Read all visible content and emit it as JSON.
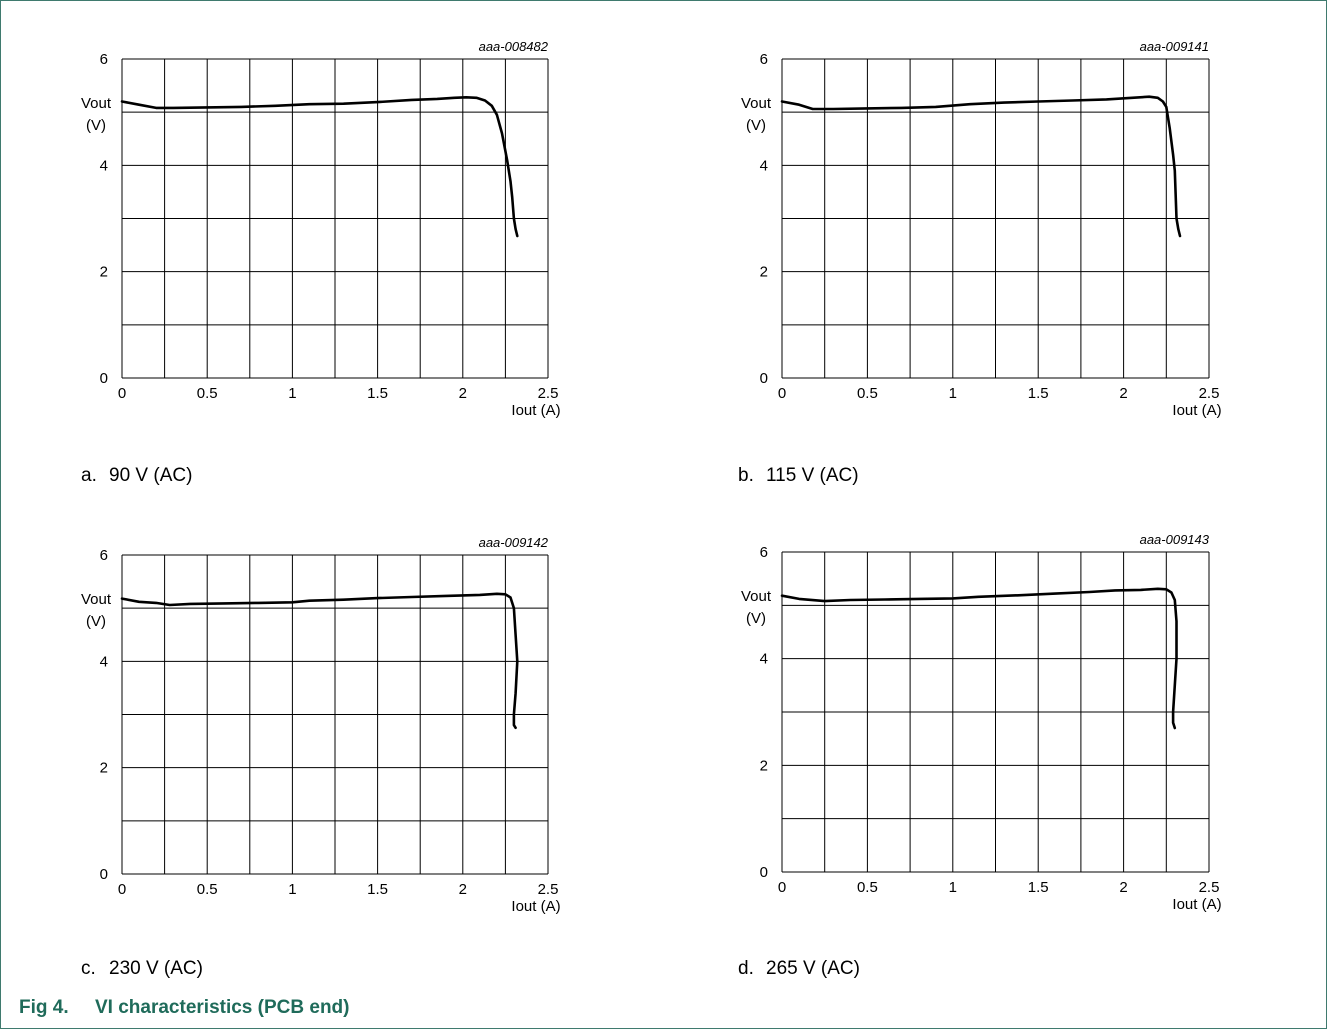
{
  "figure": {
    "number": "Fig 4.",
    "title": "VI characteristics (PCB end)"
  },
  "colors": {
    "frame": "#3f7a6e",
    "title": "#1f6b5a",
    "curve": "#000000",
    "grid": "#000000"
  },
  "panels": [
    {
      "letter": "a.",
      "caption": "90 V (AC)",
      "code": "aaa-008482"
    },
    {
      "letter": "b.",
      "caption": "115 V (AC)",
      "code": "aaa-009141"
    },
    {
      "letter": "c.",
      "caption": "230 V (AC)",
      "code": "aaa-009142"
    },
    {
      "letter": "d.",
      "caption": "265 V (AC)",
      "code": "aaa-009143"
    }
  ],
  "chart_data": [
    {
      "type": "line",
      "xlabel": "Iout (A)",
      "ylabel": [
        "Vout",
        "(V)"
      ],
      "xlim": [
        0,
        2.5
      ],
      "ylim": [
        0,
        6
      ],
      "xticks": [
        "0",
        "0.5",
        "1",
        "1.5",
        "2",
        "2.5"
      ],
      "yticks": [
        "0",
        "2",
        "4",
        "6"
      ],
      "grid": true,
      "series": [
        {
          "points": [
            [
              0,
              5.2
            ],
            [
              0.1,
              5.14
            ],
            [
              0.2,
              5.08
            ],
            [
              0.3,
              5.08
            ],
            [
              0.5,
              5.09
            ],
            [
              0.7,
              5.1
            ],
            [
              0.9,
              5.12
            ],
            [
              1.1,
              5.15
            ],
            [
              1.3,
              5.16
            ],
            [
              1.5,
              5.19
            ],
            [
              1.7,
              5.23
            ],
            [
              1.85,
              5.25
            ],
            [
              1.95,
              5.27
            ],
            [
              2.02,
              5.28
            ],
            [
              2.08,
              5.27
            ],
            [
              2.13,
              5.22
            ],
            [
              2.17,
              5.12
            ],
            [
              2.2,
              4.95
            ],
            [
              2.23,
              4.6
            ],
            [
              2.26,
              4.1
            ],
            [
              2.28,
              3.7
            ],
            [
              2.29,
              3.4
            ],
            [
              2.3,
              3.0
            ],
            [
              2.31,
              2.8
            ],
            [
              2.32,
              2.67
            ]
          ]
        }
      ]
    },
    {
      "type": "line",
      "xlabel": "Iout (A)",
      "ylabel": [
        "Vout",
        "(V)"
      ],
      "xlim": [
        0,
        2.5
      ],
      "ylim": [
        0,
        6
      ],
      "xticks": [
        "0",
        "0.5",
        "1",
        "1.5",
        "2",
        "2.5"
      ],
      "yticks": [
        "0",
        "2",
        "4",
        "6"
      ],
      "grid": true,
      "series": [
        {
          "points": [
            [
              0,
              5.2
            ],
            [
              0.1,
              5.14
            ],
            [
              0.18,
              5.06
            ],
            [
              0.3,
              5.06
            ],
            [
              0.5,
              5.07
            ],
            [
              0.7,
              5.08
            ],
            [
              0.9,
              5.1
            ],
            [
              1.1,
              5.15
            ],
            [
              1.3,
              5.18
            ],
            [
              1.5,
              5.2
            ],
            [
              1.7,
              5.22
            ],
            [
              1.9,
              5.24
            ],
            [
              2.05,
              5.27
            ],
            [
              2.15,
              5.29
            ],
            [
              2.2,
              5.27
            ],
            [
              2.23,
              5.2
            ],
            [
              2.25,
              5.1
            ],
            [
              2.27,
              4.7
            ],
            [
              2.29,
              4.2
            ],
            [
              2.3,
              3.9
            ],
            [
              2.31,
              3.0
            ],
            [
              2.32,
              2.8
            ],
            [
              2.33,
              2.67
            ]
          ]
        }
      ]
    },
    {
      "type": "line",
      "xlabel": "Iout (A)",
      "ylabel": [
        "Vout",
        "(V)"
      ],
      "xlim": [
        0,
        2.5
      ],
      "ylim": [
        0,
        6
      ],
      "xticks": [
        "0",
        "0.5",
        "1",
        "1.5",
        "2",
        "2.5"
      ],
      "yticks": [
        "0",
        "2",
        "4",
        "6"
      ],
      "grid": true,
      "series": [
        {
          "points": [
            [
              0,
              5.18
            ],
            [
              0.1,
              5.12
            ],
            [
              0.2,
              5.1
            ],
            [
              0.28,
              5.06
            ],
            [
              0.4,
              5.08
            ],
            [
              0.6,
              5.09
            ],
            [
              0.8,
              5.1
            ],
            [
              1.0,
              5.11
            ],
            [
              1.1,
              5.14
            ],
            [
              1.3,
              5.16
            ],
            [
              1.5,
              5.19
            ],
            [
              1.7,
              5.21
            ],
            [
              1.9,
              5.23
            ],
            [
              2.1,
              5.25
            ],
            [
              2.2,
              5.27
            ],
            [
              2.25,
              5.26
            ],
            [
              2.28,
              5.2
            ],
            [
              2.3,
              5.0
            ],
            [
              2.31,
              4.5
            ],
            [
              2.32,
              4.0
            ],
            [
              2.31,
              3.4
            ],
            [
              2.3,
              3.0
            ],
            [
              2.3,
              2.8
            ],
            [
              2.31,
              2.75
            ]
          ]
        }
      ]
    },
    {
      "type": "line",
      "xlabel": "Iout (A)",
      "ylabel": [
        "Vout",
        "(V)"
      ],
      "xlim": [
        0,
        2.5
      ],
      "ylim": [
        0,
        6
      ],
      "xticks": [
        "0",
        "0.5",
        "1",
        "1.5",
        "2",
        "2.5"
      ],
      "yticks": [
        "0",
        "2",
        "4",
        "6"
      ],
      "grid": true,
      "series": [
        {
          "points": [
            [
              0,
              5.18
            ],
            [
              0.1,
              5.12
            ],
            [
              0.25,
              5.08
            ],
            [
              0.4,
              5.1
            ],
            [
              0.6,
              5.11
            ],
            [
              0.8,
              5.12
            ],
            [
              1.0,
              5.13
            ],
            [
              1.15,
              5.16
            ],
            [
              1.4,
              5.19
            ],
            [
              1.6,
              5.22
            ],
            [
              1.8,
              5.25
            ],
            [
              1.95,
              5.28
            ],
            [
              2.1,
              5.29
            ],
            [
              2.2,
              5.31
            ],
            [
              2.25,
              5.3
            ],
            [
              2.28,
              5.24
            ],
            [
              2.3,
              5.1
            ],
            [
              2.31,
              4.7
            ],
            [
              2.31,
              4.0
            ],
            [
              2.3,
              3.5
            ],
            [
              2.29,
              3.0
            ],
            [
              2.29,
              2.8
            ],
            [
              2.3,
              2.7
            ]
          ]
        }
      ]
    }
  ]
}
